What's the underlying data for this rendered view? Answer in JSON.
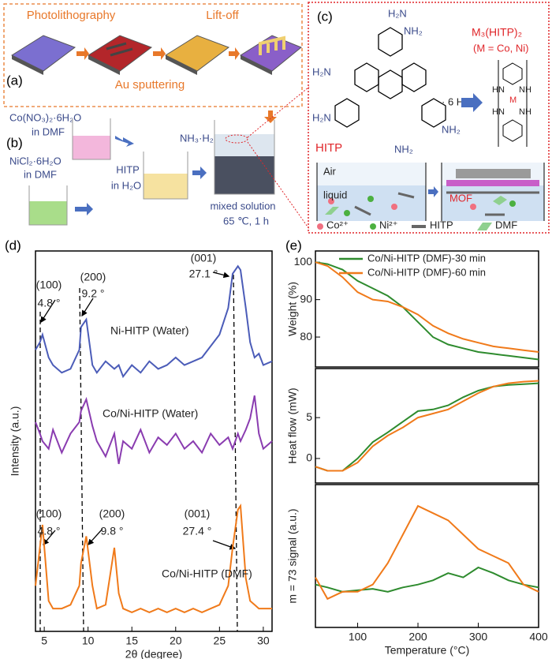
{
  "panel_labels": [
    "(a)",
    "(b)",
    "(c)",
    "(d)",
    "(e)"
  ],
  "panel_a": {
    "steps": [
      "Photolithography",
      "Lift-off"
    ],
    "bottom": "Au sputtering"
  },
  "panel_b": {
    "co_salt": "Co(NO₃)₂·6H₂O",
    "co_solvent": "in DMF",
    "ni_salt": "NiCl₂·6H₂O",
    "ni_solvent": "in DMF",
    "ligand": "HITP",
    "ligand_solvent": "in H₂O",
    "base": "NH₃·H₂O",
    "mixture": "mixed solution",
    "conditions": "65 ℃,  1 h"
  },
  "panel_c": {
    "amines": [
      "H₂N",
      "NH₂",
      "H₂N",
      "H₂N",
      "NH₂",
      "NH₂"
    ],
    "ligand_name": "HITP",
    "salt": "· 6 HCl",
    "product": "M₃(HITP)₂",
    "metals": "(M = Co, Ni)",
    "product_atoms": [
      "HN",
      "NH",
      "M",
      "HN",
      "NH"
    ],
    "phases": [
      "Air",
      "liquid"
    ],
    "film": "MOF",
    "legend": [
      "Co²⁺",
      "Ni²⁺",
      "HITP",
      "DMF"
    ]
  },
  "chart_data": [
    {
      "type": "line",
      "xlabel": "2θ (degree)",
      "ylabel": "Intensity (a.u.)",
      "x": [
        4,
        4.5,
        4.8,
        5.5,
        6,
        7,
        8,
        9,
        9.2,
        9.8,
        10.5,
        11,
        12,
        13,
        13.5,
        14,
        15,
        16,
        17,
        18,
        19,
        20,
        21,
        22,
        23,
        24,
        25,
        26,
        26.5,
        27.1,
        27.4,
        28,
        28.5,
        29,
        29.5,
        30,
        31
      ],
      "xlim": [
        4,
        31
      ],
      "xticks": [
        5,
        10,
        15,
        20,
        25,
        30
      ],
      "ylim": [
        0,
        100
      ],
      "series": [
        {
          "name": "Ni-HITP (Water)",
          "color": "#4b5cb8",
          "values": [
            74,
            76,
            78,
            72,
            70,
            68,
            69,
            74,
            80,
            82,
            70,
            68,
            71,
            69,
            70,
            67,
            70,
            68,
            71,
            69,
            70,
            72,
            70,
            71,
            72,
            75,
            78,
            85,
            94,
            96,
            95,
            85,
            76,
            72,
            73,
            70,
            71
          ]
        },
        {
          "name": "Co/Ni-HITP (Water)",
          "color": "#8a3cb0",
          "values": [
            55,
            52,
            50,
            48,
            53,
            47,
            52,
            55,
            58,
            61,
            54,
            50,
            46,
            52,
            44,
            50,
            48,
            53,
            47,
            51,
            49,
            52,
            48,
            50,
            47,
            52,
            49,
            51,
            48,
            52,
            50,
            53,
            56,
            62,
            52,
            48,
            50
          ]
        },
        {
          "name": "Co/Ni-HITP (DMF)",
          "color": "#f07a1a",
          "values": [
            12,
            22,
            28,
            8,
            6,
            6,
            7,
            12,
            18,
            25,
            12,
            6,
            7,
            22,
            10,
            6,
            5,
            6,
            5,
            6,
            5,
            6,
            5,
            6,
            5,
            6,
            7,
            12,
            22,
            32,
            33,
            14,
            8,
            7,
            6,
            6,
            6
          ]
        }
      ],
      "annotations": [
        "(100)",
        "4.8 °",
        "(200)",
        "9.2 °",
        "(001)",
        "27.1 °",
        "(100)",
        "4.8 °",
        "(200)",
        "9.8 °",
        "(001)",
        "27.4 °"
      ]
    },
    {
      "type": "line",
      "ylabel": "Weight (%)",
      "x": [
        30,
        50,
        75,
        100,
        125,
        150,
        175,
        200,
        225,
        250,
        275,
        300,
        325,
        350,
        375,
        400
      ],
      "xlim": [
        30,
        400
      ],
      "ylim": [
        72,
        103
      ],
      "yticks": [
        80,
        90,
        100
      ],
      "series": [
        {
          "name": "Co/Ni-HITP (DMF)-30 min",
          "color": "#2e8b2e",
          "values": [
            100,
            99.5,
            98,
            95,
            93,
            91,
            88,
            84,
            80,
            78,
            77,
            76,
            75.5,
            75,
            74.5,
            74
          ]
        },
        {
          "name": "Co/Ni-HITP (DMF)-60 min",
          "color": "#f07a1a",
          "values": [
            100,
            99,
            96,
            92,
            90,
            89.5,
            88,
            86,
            83,
            81,
            79.5,
            78.5,
            77.5,
            77,
            76.5,
            76
          ]
        }
      ]
    },
    {
      "type": "line",
      "ylabel": "Heat flow (mW)",
      "x": [
        30,
        50,
        75,
        100,
        125,
        150,
        175,
        200,
        225,
        250,
        275,
        300,
        325,
        350,
        375,
        400
      ],
      "xlim": [
        30,
        400
      ],
      "ylim": [
        -3,
        11
      ],
      "yticks": [
        0,
        5
      ],
      "series": [
        {
          "color": "#2e8b2e",
          "values": [
            -1,
            -1.5,
            -1.5,
            0,
            2,
            3.2,
            4.5,
            5.8,
            6,
            6.5,
            7.5,
            8.3,
            8.8,
            9,
            9.1,
            9.2
          ]
        },
        {
          "color": "#f07a1a",
          "values": [
            -1,
            -1.5,
            -1.5,
            -0.5,
            1.5,
            2.8,
            3.8,
            5,
            5.5,
            6,
            7,
            8,
            8.8,
            9.2,
            9.4,
            9.5
          ]
        }
      ]
    },
    {
      "type": "line",
      "ylabel": "m = 73 signal (a.u.)",
      "xlabel": "Temperature (°C)",
      "x": [
        30,
        50,
        75,
        100,
        125,
        150,
        175,
        200,
        225,
        250,
        275,
        300,
        325,
        350,
        375,
        400
      ],
      "xlim": [
        30,
        400
      ],
      "xticks": [
        100,
        200,
        300,
        400
      ],
      "ylim": [
        0,
        10
      ],
      "series": [
        {
          "color": "#2e8b2e",
          "values": [
            3,
            2.8,
            2.5,
            2.6,
            2.7,
            2.5,
            2.8,
            3,
            3.3,
            3.8,
            3.5,
            4.2,
            3.8,
            3.3,
            3,
            2.8
          ]
        },
        {
          "color": "#f07a1a",
          "values": [
            3.5,
            2,
            2.5,
            2.5,
            3,
            4.5,
            6.5,
            8.5,
            8,
            7.5,
            6.5,
            5.5,
            5,
            4.5,
            3,
            2.5
          ]
        }
      ]
    }
  ]
}
